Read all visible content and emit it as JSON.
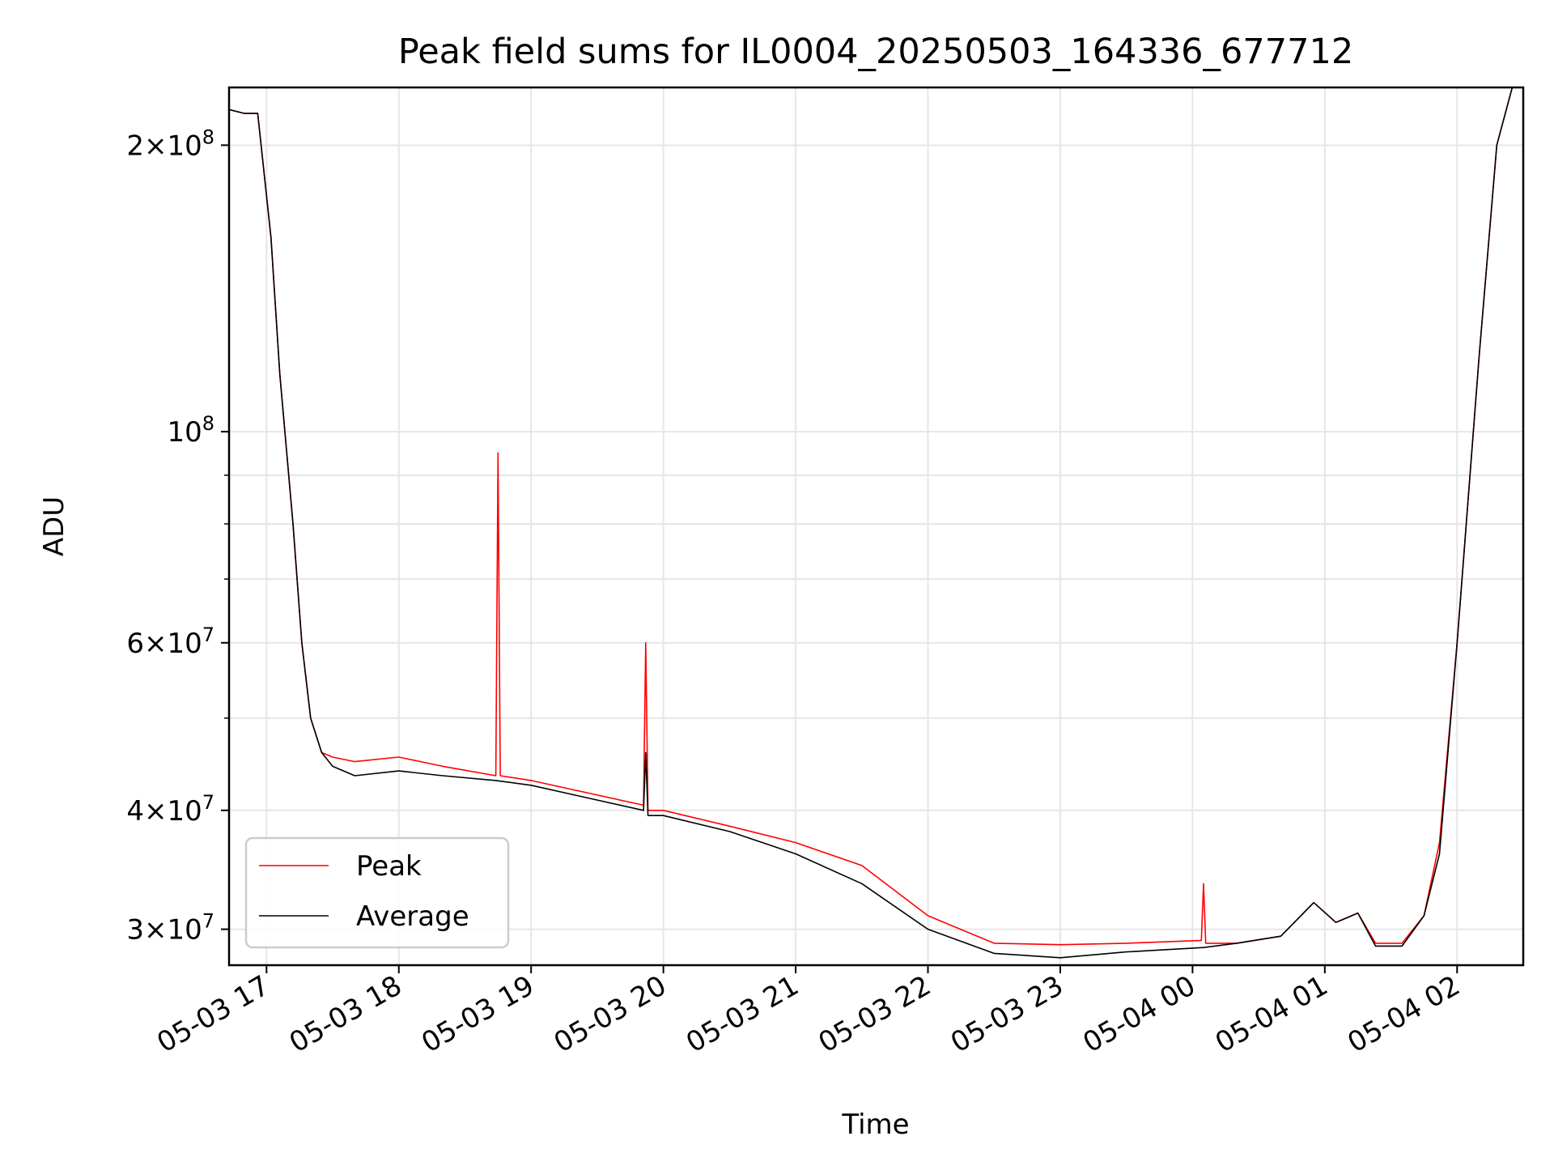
{
  "chart_data": {
    "type": "line",
    "title": "Peak field sums for IL0004_20250503_164336_677712",
    "xlabel": "Time",
    "ylabel": "ADU",
    "yscale": "log",
    "grid": true,
    "legend_position": "lower-left",
    "xlim": [
      "2025-05-03 16:43",
      "2025-05-04 02:30"
    ],
    "ylim": [
      27500000,
      230000000
    ],
    "x_tick_labels": [
      "05-03 17",
      "05-03 18",
      "05-03 19",
      "05-03 20",
      "05-03 21",
      "05-03 22",
      "05-03 23",
      "05-04 00",
      "05-04 01",
      "05-04 02"
    ],
    "x_tick_times": [
      "2025-05-03 17:00",
      "2025-05-03 18:00",
      "2025-05-03 19:00",
      "2025-05-03 20:00",
      "2025-05-03 21:00",
      "2025-05-03 22:00",
      "2025-05-03 23:00",
      "2025-05-04 00:00",
      "2025-05-04 01:00",
      "2025-05-04 02:00"
    ],
    "y_major_ticks": [
      {
        "value": 30000000,
        "mantissa": "3",
        "exponent": "7"
      },
      {
        "value": 40000000,
        "mantissa": "4",
        "exponent": "7"
      },
      {
        "value": 60000000,
        "mantissa": "6",
        "exponent": "7"
      },
      {
        "value": 100000000,
        "mantissa": "",
        "exponent": "8"
      },
      {
        "value": 200000000,
        "mantissa": "2",
        "exponent": "8"
      }
    ],
    "y_minor_ticks": [
      50000000,
      70000000,
      80000000,
      90000000
    ],
    "series": [
      {
        "name": "Peak",
        "color": "#ff0000",
        "x": [
          "2025-05-03 16:43",
          "2025-05-03 16:50",
          "2025-05-03 16:56",
          "2025-05-03 17:02",
          "2025-05-03 17:06",
          "2025-05-03 17:12",
          "2025-05-03 17:16",
          "2025-05-03 17:20",
          "2025-05-03 17:25",
          "2025-05-03 17:30",
          "2025-05-03 17:40",
          "2025-05-03 18:00",
          "2025-05-03 18:20",
          "2025-05-03 18:44",
          "2025-05-03 18:45",
          "2025-05-03 18:46",
          "2025-05-03 19:00",
          "2025-05-03 19:20",
          "2025-05-03 19:51",
          "2025-05-03 19:52",
          "2025-05-03 19:53",
          "2025-05-03 20:00",
          "2025-05-03 20:30",
          "2025-05-03 21:00",
          "2025-05-03 21:30",
          "2025-05-03 22:00",
          "2025-05-03 22:30",
          "2025-05-03 23:00",
          "2025-05-03 23:30",
          "2025-05-04 00:04",
          "2025-05-04 00:05",
          "2025-05-04 00:06",
          "2025-05-04 00:20",
          "2025-05-04 00:40",
          "2025-05-04 00:55",
          "2025-05-04 01:05",
          "2025-05-04 01:15",
          "2025-05-04 01:23",
          "2025-05-04 01:35",
          "2025-05-04 01:45",
          "2025-05-04 01:52",
          "2025-05-04 02:00",
          "2025-05-04 02:10",
          "2025-05-04 02:18",
          "2025-05-04 02:25"
        ],
        "values": [
          218000000,
          216000000,
          216000000,
          160000000,
          115000000,
          80000000,
          60000000,
          50000000,
          46000000,
          45500000,
          45000000,
          45500000,
          44500000,
          43500000,
          95000000,
          43500000,
          43000000,
          42000000,
          40500000,
          60000000,
          40000000,
          40000000,
          38500000,
          37000000,
          35000000,
          31000000,
          29000000,
          28900000,
          29000000,
          29200000,
          33500000,
          29000000,
          29000000,
          29500000,
          32000000,
          30500000,
          31200000,
          29000000,
          29000000,
          31000000,
          37000000,
          60000000,
          120000000,
          200000000,
          230000000
        ]
      },
      {
        "name": "Average",
        "color": "#000000",
        "x": [
          "2025-05-03 16:43",
          "2025-05-03 16:50",
          "2025-05-03 16:56",
          "2025-05-03 17:02",
          "2025-05-03 17:06",
          "2025-05-03 17:12",
          "2025-05-03 17:16",
          "2025-05-03 17:20",
          "2025-05-03 17:25",
          "2025-05-03 17:30",
          "2025-05-03 17:40",
          "2025-05-03 18:00",
          "2025-05-03 18:20",
          "2025-05-03 18:44",
          "2025-05-03 19:00",
          "2025-05-03 19:20",
          "2025-05-03 19:51",
          "2025-05-03 19:52",
          "2025-05-03 19:53",
          "2025-05-03 20:00",
          "2025-05-03 20:30",
          "2025-05-03 21:00",
          "2025-05-03 21:30",
          "2025-05-03 22:00",
          "2025-05-03 22:30",
          "2025-05-03 23:00",
          "2025-05-03 23:30",
          "2025-05-04 00:05",
          "2025-05-04 00:20",
          "2025-05-04 00:40",
          "2025-05-04 00:55",
          "2025-05-04 01:05",
          "2025-05-04 01:15",
          "2025-05-04 01:23",
          "2025-05-04 01:35",
          "2025-05-04 01:45",
          "2025-05-04 01:52",
          "2025-05-04 02:00",
          "2025-05-04 02:10",
          "2025-05-04 02:18",
          "2025-05-04 02:25"
        ],
        "values": [
          218000000,
          216000000,
          216000000,
          160000000,
          115000000,
          80000000,
          60000000,
          50000000,
          46000000,
          44500000,
          43500000,
          44000000,
          43500000,
          43000000,
          42500000,
          41500000,
          40000000,
          46000000,
          39500000,
          39500000,
          38000000,
          36000000,
          33500000,
          30000000,
          28300000,
          28000000,
          28400000,
          28700000,
          29000000,
          29500000,
          32000000,
          30500000,
          31200000,
          28800000,
          28800000,
          31000000,
          36000000,
          60000000,
          120000000,
          200000000,
          230000000
        ]
      }
    ]
  }
}
